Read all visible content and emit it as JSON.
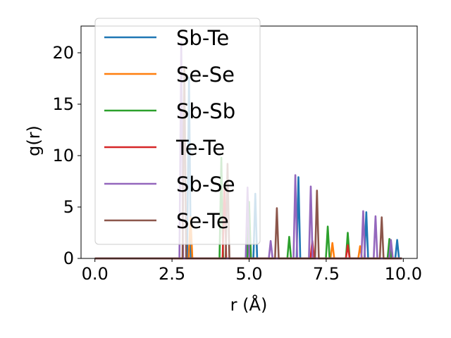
{
  "chart_data": {
    "type": "line",
    "title": "",
    "xlabel": "r (Å)",
    "ylabel": "g(r)",
    "xlim": [
      -0.45,
      10.45
    ],
    "ylim": [
      0,
      22.6
    ],
    "xticks": [
      0.0,
      2.5,
      5.0,
      7.5,
      10.0
    ],
    "xtick_labels": [
      "0.0",
      "2.5",
      "5.0",
      "7.5",
      "10.0"
    ],
    "yticks": [
      0,
      5,
      10,
      15,
      20
    ],
    "ytick_labels": [
      "0",
      "5",
      "10",
      "15",
      "20"
    ],
    "grid": false,
    "legend": "upper-left",
    "series": [
      {
        "name": "Sb-Te",
        "color": "#1f77b4",
        "peaks": [
          [
            3.05,
            17.6
          ],
          [
            5.2,
            6.3
          ],
          [
            6.6,
            7.9
          ],
          [
            8.8,
            4.5
          ],
          [
            9.8,
            1.8
          ]
        ]
      },
      {
        "name": "Se-Se",
        "color": "#ff7f0e",
        "peaks": [
          [
            3.1,
            4.0
          ],
          [
            7.7,
            1.5
          ],
          [
            8.6,
            1.2
          ]
        ]
      },
      {
        "name": "Sb-Sb",
        "color": "#2ca02c",
        "peaks": [
          [
            4.1,
            9.8
          ],
          [
            5.0,
            5.5
          ],
          [
            6.3,
            2.1
          ],
          [
            7.55,
            3.1
          ],
          [
            8.2,
            2.5
          ],
          [
            9.55,
            1.9
          ]
        ]
      },
      {
        "name": "Te-Te",
        "color": "#d62728",
        "peaks": [
          [
            4.2,
            7.1
          ],
          [
            7.05,
            1.7
          ],
          [
            8.2,
            1.3
          ]
        ]
      },
      {
        "name": "Sb-Se",
        "color": "#9467bd",
        "peaks": [
          [
            2.8,
            21.0
          ],
          [
            4.95,
            6.9
          ],
          [
            5.7,
            1.7
          ],
          [
            6.5,
            8.1
          ],
          [
            7.0,
            7.0
          ],
          [
            8.7,
            4.6
          ],
          [
            9.1,
            4.1
          ],
          [
            9.6,
            1.8
          ]
        ]
      },
      {
        "name": "Se-Te",
        "color": "#8c564b",
        "peaks": [
          [
            2.9,
            18.6
          ],
          [
            4.3,
            9.2
          ],
          [
            5.9,
            4.9
          ],
          [
            7.2,
            6.6
          ],
          [
            9.3,
            4.0
          ]
        ]
      }
    ]
  }
}
